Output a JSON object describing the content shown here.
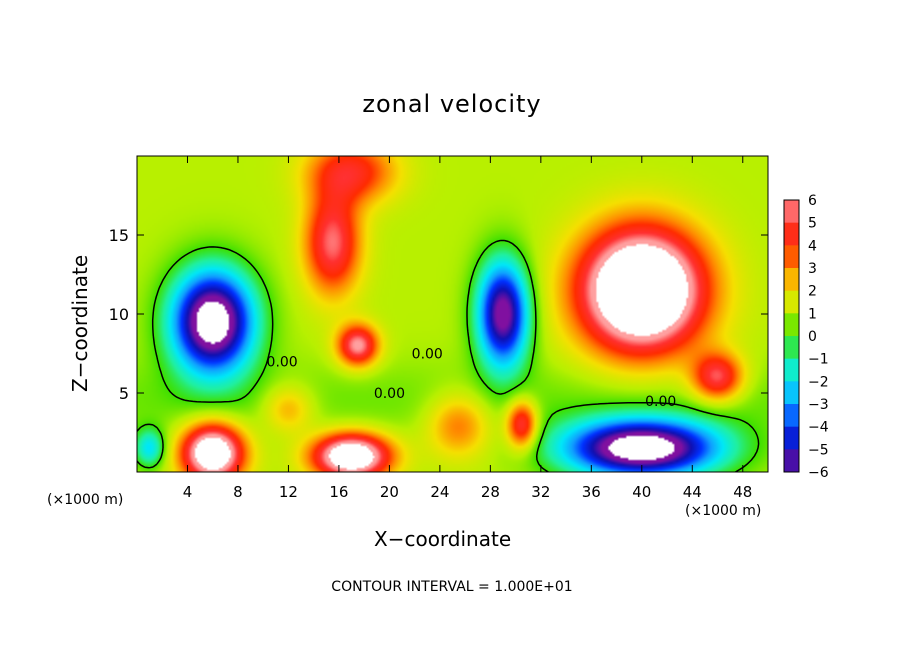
{
  "chart_data": {
    "type": "heatmap",
    "title": "zonal velocity",
    "xlabel": "X−coordinate",
    "ylabel": "Z−coordinate",
    "x_unit": "(×1000 m)",
    "xlim": [
      0,
      50
    ],
    "ylim": [
      0,
      20
    ],
    "x_ticks": [
      4,
      8,
      12,
      16,
      20,
      24,
      28,
      32,
      36,
      40,
      44,
      48
    ],
    "y_ticks": [
      5,
      10,
      15
    ],
    "colorbar": {
      "levels": [
        6,
        5,
        4,
        3,
        2,
        1,
        0,
        -1,
        -2,
        -3,
        -4,
        -5,
        -6
      ],
      "labels": [
        "6",
        "5",
        "4",
        "3",
        "2",
        "1",
        "0",
        "−1",
        "−2",
        "−3",
        "−4",
        "−5",
        "−6"
      ]
    },
    "contour_labels": [
      {
        "text": "0.00",
        "x": 11.5,
        "z": 7.0
      },
      {
        "text": "0.00",
        "x": 20.0,
        "z": 5.0
      },
      {
        "text": "0.00",
        "x": 23.0,
        "z": 7.5
      },
      {
        "text": "0.00",
        "x": 41.5,
        "z": 4.5
      }
    ],
    "footer": "CONTOUR INTERVAL = 1.000E+01",
    "features": [
      {
        "x": 6,
        "z": 9.5,
        "amp": -9,
        "sx": 3.2,
        "sz": 3.2
      },
      {
        "x": 29,
        "z": 10,
        "amp": -7.5,
        "sx": 2.0,
        "sz": 3.3
      },
      {
        "x": 40,
        "z": 11.5,
        "amp": 10,
        "sx": 4.8,
        "sz": 3.8
      },
      {
        "x": 15.5,
        "z": 14.5,
        "amp": 4.6,
        "sx": 2.2,
        "sz": 3.2
      },
      {
        "x": 17.5,
        "z": 8.0,
        "amp": 5.2,
        "sx": 1.6,
        "sz": 1.3
      },
      {
        "x": 17,
        "z": 19,
        "amp": 3.5,
        "sx": 3.5,
        "sz": 2.0
      },
      {
        "x": 40,
        "z": 1.5,
        "amp": -9,
        "sx": 6.0,
        "sz": 1.8
      },
      {
        "x": 6,
        "z": 1.2,
        "amp": 8,
        "sx": 2.4,
        "sz": 1.8
      },
      {
        "x": 17,
        "z": 1.0,
        "amp": 8,
        "sx": 3.0,
        "sz": 1.4
      },
      {
        "x": 30.5,
        "z": 3.0,
        "amp": 4.5,
        "sx": 1.2,
        "sz": 1.5
      },
      {
        "x": 46,
        "z": 6.0,
        "amp": 4.5,
        "sx": 2.0,
        "sz": 1.5
      },
      {
        "x": 1,
        "z": 1.5,
        "amp": -3,
        "sx": 1.2,
        "sz": 1.2
      },
      {
        "x": 25.5,
        "z": 3.0,
        "amp": 2.5,
        "sx": 2.5,
        "sz": 2.0
      },
      {
        "x": 12,
        "z": 4.0,
        "amp": 2.0,
        "sx": 2.0,
        "sz": 1.5
      }
    ]
  }
}
